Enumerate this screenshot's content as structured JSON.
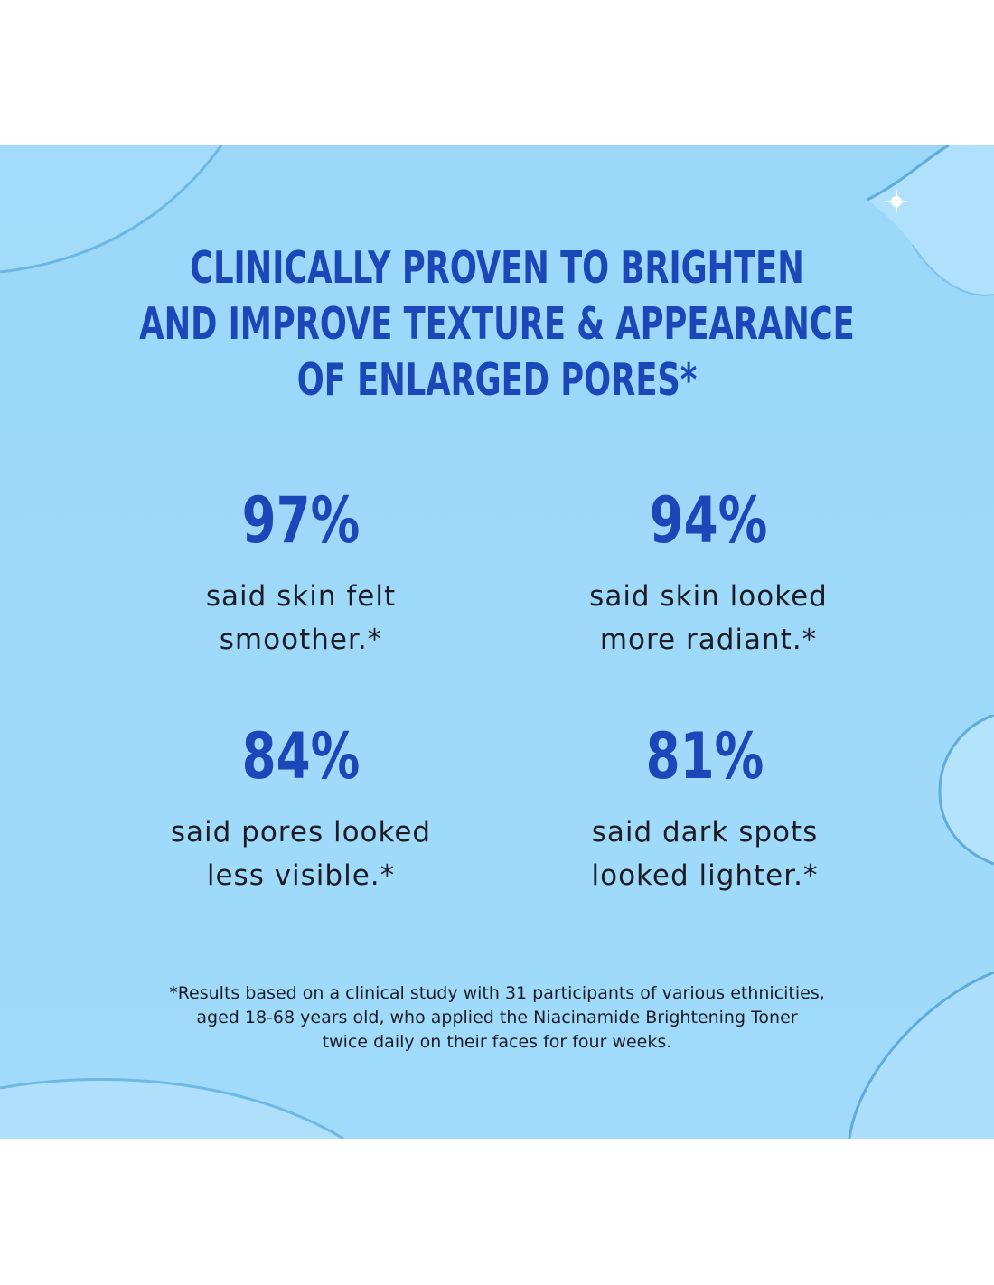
{
  "headline": {
    "line1": "CLINICALLY PROVEN TO BRIGHTEN",
    "line2": "AND IMPROVE TEXTURE & APPEARANCE",
    "line3": "OF ENLARGED PORES*"
  },
  "stats": [
    {
      "percent": "97%",
      "line1": "said skin felt",
      "line2": "smoother.*"
    },
    {
      "percent": "94%",
      "line1": "said skin looked",
      "line2": "more radiant.*"
    },
    {
      "percent": "84%",
      "line1": "said pores looked",
      "line2": "less visible.*"
    },
    {
      "percent": "81%",
      "line1": "said dark spots",
      "line2": "looked lighter.*"
    }
  ],
  "footnote": {
    "line1": "*Results based on a clinical study with 31 participants of various ethnicities,",
    "line2": "aged 18-68 years old, who applied the Niacinamide Brightening Toner",
    "line3": "twice daily on their faces for four weeks."
  },
  "colors": {
    "accent": "#1a48b8",
    "background": "#9ed9fa",
    "body_text": "#1c1c24"
  }
}
